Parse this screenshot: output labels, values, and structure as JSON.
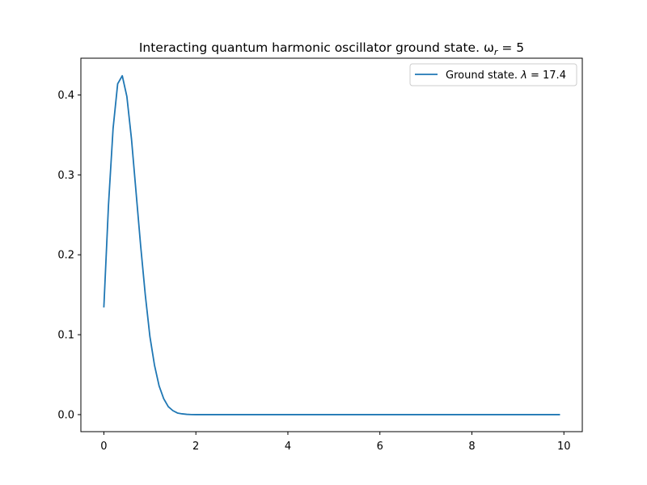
{
  "chart_data": {
    "type": "line",
    "title": "Interacting quantum harmonic oscillator ground state. ω",
    "title_subscript": "r",
    "title_suffix": " = 5",
    "xlabel": "",
    "ylabel": "",
    "xlim": [
      -0.5,
      10.4
    ],
    "ylim": [
      -0.0213,
      0.446
    ],
    "xticks": [
      0,
      2,
      4,
      6,
      8,
      10
    ],
    "yticks": [
      0.0,
      0.1,
      0.2,
      0.3,
      0.4
    ],
    "xtick_labels": [
      "0",
      "2",
      "4",
      "6",
      "8",
      "10"
    ],
    "ytick_labels": [
      "0.0",
      "0.1",
      "0.2",
      "0.3",
      "0.4"
    ],
    "grid": false,
    "legend_position": "top-right",
    "series": [
      {
        "name": "Ground state. λ = 17.4",
        "legend_prefix": "Ground state. ",
        "legend_symbol": "λ",
        "legend_suffix": " = 17.4",
        "color": "#1f77b4",
        "x": [
          0.0,
          0.1,
          0.2,
          0.3,
          0.4,
          0.5,
          0.6,
          0.7,
          0.8,
          0.9,
          1.0,
          1.1,
          1.2,
          1.3,
          1.4,
          1.5,
          1.6,
          1.7,
          1.8,
          1.9,
          2.0,
          2.5,
          3.0,
          4.0,
          5.0,
          6.0,
          7.0,
          8.0,
          9.0,
          9.9
        ],
        "y": [
          0.135,
          0.262,
          0.358,
          0.414,
          0.424,
          0.398,
          0.345,
          0.278,
          0.211,
          0.15,
          0.098,
          0.062,
          0.036,
          0.02,
          0.01,
          0.005,
          0.002,
          0.001,
          0.0004,
          0.0001,
          0.0,
          0.0,
          0.0,
          0.0,
          0.0,
          0.0,
          0.0,
          0.0,
          0.0,
          0.0
        ]
      }
    ]
  }
}
